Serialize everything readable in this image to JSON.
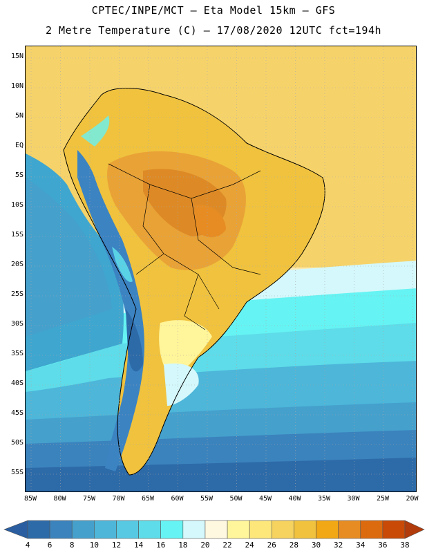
{
  "header": {
    "line1": "CPTEC/INPE/MCT –  Eta Model 15km – GFS",
    "line2": "2 Metre Temperature (C) – 17/08/2020 12UTC fct=194h"
  },
  "map": {
    "lat_labels": [
      "15N",
      "10N",
      "5N",
      "EQ",
      "5S",
      "10S",
      "15S",
      "20S",
      "25S",
      "30S",
      "35S",
      "40S",
      "45S",
      "50S",
      "55S"
    ],
    "lon_labels": [
      "85W",
      "80W",
      "75W",
      "70W",
      "65W",
      "60W",
      "55W",
      "50W",
      "45W",
      "40W",
      "35W",
      "30W",
      "25W",
      "20W"
    ],
    "colors": {
      "ocean_warm": "#f6d36a",
      "land_hot": "#e9a236",
      "land_very_hot": "#dd8a26",
      "ocean_cold": "#2e6aa8",
      "ocean_mid": "#3fa6cf",
      "andes_cold": "#3c83c2",
      "cyan": "#66e8ee"
    }
  },
  "colorbar": {
    "labels": [
      "4",
      "6",
      "8",
      "10",
      "12",
      "14",
      "16",
      "18",
      "20",
      "22",
      "24",
      "26",
      "28",
      "30",
      "32",
      "34",
      "36",
      "38"
    ],
    "colors": [
      "#2d6aa8",
      "#3b83bd",
      "#45a0cc",
      "#4db6d9",
      "#57c9e3",
      "#5edce9",
      "#66f3f3",
      "#d4f8fb",
      "#fff8e1",
      "#fff59a",
      "#fde77b",
      "#f6d35e",
      "#f0c23e",
      "#f2a714",
      "#e68c23",
      "#dc6a0f",
      "#c84a06"
    ],
    "low_arrow_color": "#2a5ea0",
    "high_arrow_color": "#b13b0a"
  }
}
